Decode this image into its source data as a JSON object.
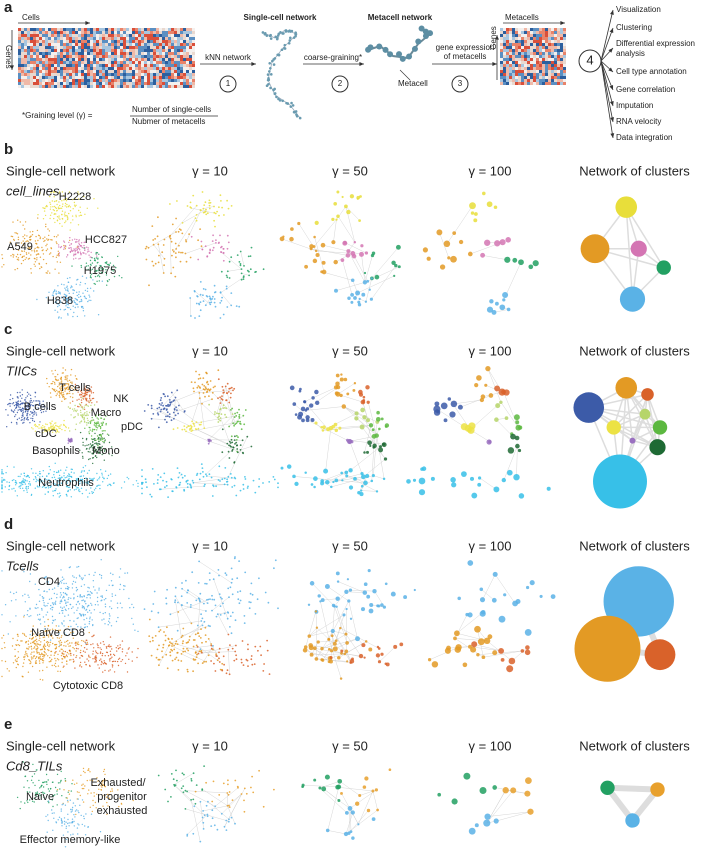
{
  "panel_a": {
    "letter": "a",
    "cells": "Cells",
    "genes": "Genes",
    "knn": "kNN network",
    "step1": "1",
    "sc_network": "Single-cell network",
    "coarse": "coarse-graining*",
    "step2": "2",
    "mc_network": "Metacell network",
    "metacell": "Metacell",
    "gene_expr": [
      "gene expression",
      "of metacells"
    ],
    "step3": "3",
    "metacells": "Metacells",
    "genes2": "Genes",
    "step4": "4",
    "applications": [
      "Visualization",
      "Clustering",
      "Differential expression",
      "analysis",
      "Cell type annotation",
      "Gene correlation",
      "Imputation",
      "RNA velocity",
      "Data integration"
    ],
    "graining": "*Graining level (γ) =",
    "numerator": "Number of single-cells",
    "denominator": "Nubmer of metacells"
  },
  "panels": [
    {
      "letter": "b",
      "columns": [
        "Single-cell network",
        "γ = 10",
        "γ = 50",
        "γ = 100",
        "Network of clusters"
      ],
      "dataset": "cell_lines",
      "labels": [
        "H2228",
        "A549",
        "HCC827",
        "H1975",
        "H838"
      ]
    },
    {
      "letter": "c",
      "columns": [
        "Single-cell network",
        "γ = 10",
        "γ = 50",
        "γ = 100",
        "Network of clusters"
      ],
      "dataset": "TIICs",
      "labels": [
        "T cells",
        "NK",
        "B cells",
        "Macro",
        "pDC",
        "cDC",
        "Basophils",
        "Mono",
        "Neutrophils"
      ]
    },
    {
      "letter": "d",
      "columns": [
        "Single-cell network",
        "γ = 10",
        "γ = 50",
        "γ = 100",
        "Network of clusters"
      ],
      "dataset": "Tcells",
      "labels": [
        "CD4",
        "Naïve CD8",
        "Cytotoxic CD8"
      ]
    },
    {
      "letter": "e",
      "columns": [
        "Single-cell network",
        "γ = 10",
        "γ = 50",
        "γ = 100",
        "Network of clusters"
      ],
      "dataset": "Cd8_TILs",
      "labels": [
        "Naive",
        "Exhausted/",
        "progenitor",
        "exhausted",
        "Effector memory-like"
      ]
    }
  ]
}
